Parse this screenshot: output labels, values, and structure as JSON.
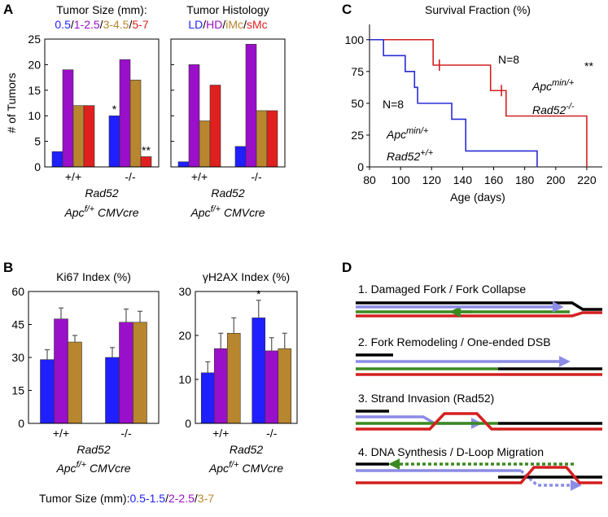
{
  "panel_labels": [
    "A",
    "B",
    "C",
    "D"
  ],
  "chart_data": [
    {
      "type": "bar",
      "title": "Tumor Size (mm):",
      "ylabel": "# of Tumors",
      "categories": [
        "+/+",
        "-/-"
      ],
      "legend_separator": "/",
      "series": [
        {
          "name": "0.5",
          "color": "#1f1fff",
          "values": [
            3,
            10
          ],
          "annotations": [
            null,
            "*"
          ]
        },
        {
          "name": "1-2.5",
          "color": "#9a0fc9",
          "values": [
            19,
            21
          ]
        },
        {
          "name": "3-4.5",
          "color": "#b8862e",
          "values": [
            12,
            17
          ]
        },
        {
          "name": "5-7",
          "color": "#e01f1f",
          "values": [
            12,
            2
          ],
          "annotations": [
            null,
            "**"
          ]
        }
      ],
      "ylim": [
        0,
        25
      ],
      "yticks": [
        0,
        5,
        10,
        15,
        20,
        25
      ],
      "show_ytick_labels": true,
      "xlabel": {
        "line1": "Rad52",
        "line2": [
          {
            "text": "Apc"
          },
          {
            "text": "f/+",
            "sup": true
          },
          {
            "text": " CMVcre"
          }
        ]
      }
    },
    {
      "type": "bar",
      "title": "Tumor Histology",
      "categories": [
        "+/+",
        "-/-"
      ],
      "legend_separator": "/",
      "series": [
        {
          "name": "LD",
          "color": "#1f1fff",
          "values": [
            1,
            4
          ]
        },
        {
          "name": "HD",
          "color": "#9a0fc9",
          "values": [
            20,
            24
          ]
        },
        {
          "name": "iMc",
          "color": "#b8862e",
          "values": [
            9,
            11
          ]
        },
        {
          "name": "sMc",
          "color": "#e01f1f",
          "values": [
            16,
            11
          ]
        }
      ],
      "ylim": [
        0,
        25
      ],
      "yticks": [
        0,
        5,
        10,
        15,
        20,
        25
      ],
      "show_ytick_labels": false,
      "xlabel": {
        "line1": "Rad52",
        "line2": [
          {
            "text": "Apc"
          },
          {
            "text": "f/+",
            "sup": true
          },
          {
            "text": " CMVcre"
          }
        ]
      }
    },
    {
      "type": "bar",
      "title": "Ki67 Index (%)",
      "categories": [
        "+/+",
        "-/-"
      ],
      "legend_title": "Tumor Size (mm):",
      "legend_separator": "/",
      "series": [
        {
          "name": "0.5-1.5",
          "color": "#1f1fff",
          "values": [
            29,
            30
          ],
          "errors": [
            4.5,
            4.5
          ]
        },
        {
          "name": "2-2.5",
          "color": "#9a0fc9",
          "values": [
            47.5,
            46
          ],
          "errors": [
            5,
            6
          ]
        },
        {
          "name": "3-7",
          "color": "#b8862e",
          "values": [
            37,
            46
          ],
          "errors": [
            3,
            5
          ]
        }
      ],
      "ylim": [
        0,
        60
      ],
      "yticks": [
        0,
        15,
        30,
        45,
        60
      ],
      "show_ytick_labels": true,
      "xlabel": {
        "line1": "Rad52",
        "line2": [
          {
            "text": "Apc"
          },
          {
            "text": "f/+",
            "sup": true
          },
          {
            "text": " CMVcre"
          }
        ]
      }
    },
    {
      "type": "bar",
      "title": "γH2AX Index (%)",
      "categories": [
        "+/+",
        "-/-"
      ],
      "series": [
        {
          "color": "#1f1fff",
          "values": [
            11.5,
            24
          ],
          "errors": [
            2.5,
            4
          ],
          "annotations": [
            null,
            "*"
          ]
        },
        {
          "color": "#9a0fc9",
          "values": [
            17,
            16.5
          ],
          "errors": [
            3.5,
            3
          ]
        },
        {
          "color": "#b8862e",
          "values": [
            20.5,
            17
          ],
          "errors": [
            3.5,
            3.5
          ]
        }
      ],
      "ylim": [
        0,
        30
      ],
      "yticks": [
        0,
        10,
        20,
        30
      ],
      "show_ytick_labels": true,
      "xlabel": {
        "line1": "Rad52",
        "line2": [
          {
            "text": "Apc"
          },
          {
            "text": "f/+",
            "sup": true
          },
          {
            "text": " CMVcre"
          }
        ]
      }
    },
    {
      "type": "step",
      "title": "Survival Fraction (%)",
      "xlabel": "Age (days)",
      "xlim": [
        80,
        230
      ],
      "xticks": [
        80,
        100,
        120,
        140,
        160,
        180,
        200,
        220
      ],
      "ylim": [
        0,
        112
      ],
      "yticks": [
        0,
        25,
        50,
        75,
        100
      ],
      "series": [
        {
          "color": "#d42020",
          "x": [
            80,
            121,
            158,
            168,
            220
          ],
          "values": [
            100,
            80,
            60,
            40,
            0
          ],
          "censored": [
            125,
            165
          ],
          "n_label": "N=8",
          "significance": "**",
          "genotype": [
            [
              {
                "text": "Apc"
              },
              {
                "text": "min/+",
                "sup": true
              }
            ],
            [
              {
                "text": "Rad52"
              },
              {
                "text": "-/-",
                "sup": true
              }
            ]
          ]
        },
        {
          "color": "#2a2ad8",
          "x": [
            80,
            89,
            103,
            109,
            111,
            133,
            142,
            188
          ],
          "values": [
            100,
            87.5,
            75,
            62.5,
            50,
            37.5,
            12.5,
            0
          ],
          "n_label": "N=8",
          "genotype": [
            [
              {
                "text": "Apc"
              },
              {
                "text": "min/+",
                "sup": true
              }
            ],
            [
              {
                "text": "Rad52"
              },
              {
                "text": "+/+",
                "sup": true
              }
            ]
          ]
        }
      ]
    }
  ],
  "diagram": {
    "steps": [
      "1. Damaged Fork / Fork Collapse",
      "2. Fork Remodeling / One-ended DSB",
      "3. Strand Invasion (Rad52)",
      "4. DNA Synthesis / D-Loop Migration"
    ]
  }
}
